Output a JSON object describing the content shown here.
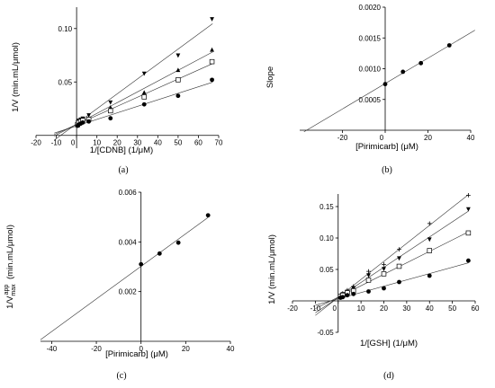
{
  "chart_data": [
    {
      "panel_label": "(a)",
      "type": "scatter",
      "xlabel": "1/[CDNB] (1/μM)",
      "ylabel": "1/V (min.mL/μmol)",
      "xlim": [
        -20,
        70
      ],
      "ylim": [
        -0.012,
        0.12
      ],
      "xticks": [
        -20,
        -10,
        0,
        10,
        20,
        30,
        40,
        50,
        60,
        70
      ],
      "xtick_labels": [
        "-20",
        "-10",
        "0",
        "10",
        "20",
        "30",
        "40",
        "50",
        "60",
        "70"
      ],
      "yticks": [
        0.05,
        0.1
      ],
      "ytick_labels": [
        "0.05",
        "0.10"
      ],
      "fit_x_range": [
        -11,
        67
      ],
      "series": [
        {
          "marker": "triangle-down",
          "x": [
            0.5,
            1,
            2,
            3,
            6,
            16.7,
            33.3,
            50,
            66.7
          ],
          "y": [
            0.012,
            0.014,
            0.015,
            0.016,
            0.019,
            0.031,
            0.058,
            0.075,
            0.109
          ]
        },
        {
          "marker": "triangle-up",
          "x": [
            0.5,
            1,
            2,
            3,
            6,
            16.7,
            33.3,
            50,
            66.7
          ],
          "y": [
            0.011,
            0.013,
            0.013,
            0.015,
            0.016,
            0.026,
            0.04,
            0.061,
            0.08
          ]
        },
        {
          "marker": "square",
          "x": [
            0.5,
            1,
            2,
            3,
            6,
            16.7,
            33.3,
            50,
            66.7
          ],
          "y": [
            0.01,
            0.012,
            0.013,
            0.014,
            0.015,
            0.023,
            0.036,
            0.052,
            0.069
          ]
        },
        {
          "marker": "circle",
          "x": [
            0.5,
            1,
            2,
            3,
            6,
            16.7,
            33.3,
            50,
            66.7
          ],
          "y": [
            0.009,
            0.01,
            0.011,
            0.012,
            0.013,
            0.016,
            0.029,
            0.037,
            0.052
          ]
        }
      ]
    },
    {
      "panel_label": "(b)",
      "type": "scatter",
      "xlabel": "[Pirimicarb] (μM)",
      "ylabel": "Slope",
      "xlim": [
        -40,
        40
      ],
      "ylim": [
        0,
        0.002
      ],
      "xticks": [
        -20,
        0,
        20,
        40
      ],
      "xtick_labels": [
        "-20",
        "0",
        "20",
        "40"
      ],
      "yticks": [
        0.0005,
        0.001,
        0.0015,
        0.002
      ],
      "ytick_labels": [
        "0.0005",
        "0.0010",
        "0.0015",
        "0.0020"
      ],
      "fit_x_range": [
        -38,
        42
      ],
      "series": [
        {
          "marker": "circle",
          "x": [
            0,
            8.3,
            16.7,
            30
          ],
          "y": [
            0.00075,
            0.00095,
            0.00109,
            0.00138
          ]
        }
      ]
    },
    {
      "panel_label": "(c)",
      "type": "scatter",
      "xlabel": "[Pirimicarb] (μM)",
      "ylabel": "1/V",
      "ylabel_sub": "max",
      "ylabel_sup": "app",
      "ylabel_unit": "(min.mL/μmol)",
      "xlim": [
        -45,
        40
      ],
      "ylim": [
        0,
        0.006
      ],
      "xticks": [
        -40,
        -20,
        0,
        20,
        40
      ],
      "xtick_labels": [
        "-40",
        "-20",
        "0",
        "20",
        "40"
      ],
      "yticks": [
        0.002,
        0.004,
        0.006
      ],
      "ytick_labels": [
        "0.002",
        "0.004",
        "0.006"
      ],
      "fit_x_range": [
        -45,
        30
      ],
      "series": [
        {
          "marker": "circle",
          "x": [
            0,
            8.3,
            16.7,
            30
          ],
          "y": [
            0.0031,
            0.00353,
            0.00397,
            0.00507
          ]
        }
      ]
    },
    {
      "panel_label": "(d)",
      "type": "scatter",
      "xlabel": "1/[GSH] (1/μM)",
      "ylabel": "1/V (min.mL/μmol)",
      "xlim": [
        -20,
        60
      ],
      "ylim": [
        -0.05,
        0.17
      ],
      "xticks": [
        -20,
        -10,
        0,
        10,
        20,
        30,
        40,
        50,
        60
      ],
      "xtick_labels": [
        "-20",
        "-10",
        "0",
        "10",
        "20",
        "30",
        "40",
        "50",
        "60"
      ],
      "yticks": [
        -0.05,
        0.05,
        0.1,
        0.15
      ],
      "ytick_labels": [
        "-0.05",
        "0.05",
        "0.10",
        "0.15"
      ],
      "fit_x_range": [
        -10,
        57
      ],
      "series": [
        {
          "marker": "plus",
          "x": [
            1,
            2,
            4,
            6.7,
            13.3,
            20,
            26.7,
            40,
            57
          ],
          "y": [
            0.009,
            0.012,
            0.017,
            0.023,
            0.047,
            0.058,
            0.082,
            0.123,
            0.168
          ]
        },
        {
          "marker": "triangle-down",
          "x": [
            1,
            2,
            4,
            6.7,
            13.3,
            20,
            26.7,
            40,
            57
          ],
          "y": [
            0.008,
            0.011,
            0.015,
            0.02,
            0.041,
            0.051,
            0.068,
            0.098,
            0.146
          ]
        },
        {
          "marker": "square",
          "x": [
            1,
            2,
            4,
            6.7,
            13.3,
            20,
            26.7,
            40,
            57
          ],
          "y": [
            0.007,
            0.009,
            0.013,
            0.016,
            0.033,
            0.043,
            0.055,
            0.08,
            0.108
          ]
        },
        {
          "marker": "circle",
          "x": [
            1,
            2,
            4,
            6.7,
            13.3,
            20,
            26.7,
            40,
            57
          ],
          "y": [
            0.005,
            0.006,
            0.009,
            0.011,
            0.015,
            0.02,
            0.03,
            0.04,
            0.064
          ]
        }
      ]
    }
  ]
}
